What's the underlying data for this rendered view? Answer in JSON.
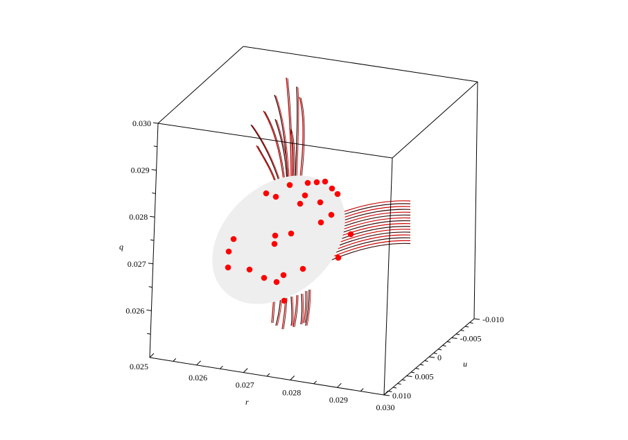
{
  "chart_data": {
    "type": "scatter",
    "title": "",
    "axes": {
      "r": {
        "label": "r",
        "range": [
          0.025,
          0.03
        ],
        "ticks": [
          "0.025",
          "0.026",
          "0.027",
          "0.028",
          "0.029",
          "0.030"
        ]
      },
      "u": {
        "label": "u",
        "range": [
          -0.01,
          0.01
        ],
        "ticks": [
          "-0.010",
          "-0.005",
          "0",
          "0.005",
          "0.010"
        ]
      },
      "q": {
        "label": "q",
        "range": [
          0.025,
          0.03
        ],
        "ticks": [
          "0.026",
          "0.027",
          "0.028",
          "0.029",
          "0.030"
        ]
      }
    },
    "surface": {
      "shape": "ellipsoid",
      "color": "#eeeeee"
    },
    "trajectories": {
      "colors": [
        "#cc0000",
        "#3a0e0e"
      ]
    },
    "points_color": "#ff0000"
  }
}
